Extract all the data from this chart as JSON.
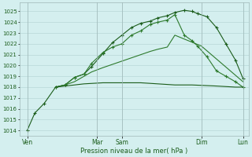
{
  "xlabel": "Pression niveau de la mer( hPa )",
  "background_color": "#d4efef",
  "grid_color": "#b8d8d8",
  "line_color_dark": "#1a5c1a",
  "line_color_med": "#2d7a2d",
  "ylim": [
    1013.5,
    1025.8
  ],
  "yticks": [
    1014,
    1015,
    1016,
    1017,
    1018,
    1019,
    1020,
    1021,
    1022,
    1023,
    1024,
    1025
  ],
  "xlim": [
    -0.1,
    12.0
  ],
  "day_positions": [
    0.3,
    4.0,
    5.3,
    9.5,
    11.7
  ],
  "day_labels": [
    "Ven",
    "Mar",
    "Sam",
    "Dim",
    "Lun"
  ],
  "vline_positions": [
    0.3,
    4.0,
    5.3,
    9.5,
    11.7
  ],
  "series": {
    "line1_x": [
      0.3,
      0.7,
      1.2,
      1.8,
      2.3,
      2.8,
      3.3,
      3.7,
      4.3,
      4.8,
      5.3,
      5.8,
      6.3,
      6.8,
      7.2,
      7.7,
      8.1,
      8.6,
      9.0,
      9.3,
      9.8,
      10.3,
      10.8,
      11.3,
      11.7
    ],
    "line1_y": [
      1014.0,
      1015.6,
      1016.5,
      1018.0,
      1018.2,
      1018.9,
      1019.2,
      1019.9,
      1021.1,
      1022.1,
      1022.8,
      1023.5,
      1023.9,
      1024.1,
      1024.4,
      1024.6,
      1024.9,
      1025.1,
      1025.0,
      1024.8,
      1024.5,
      1023.5,
      1022.0,
      1020.5,
      1018.8
    ],
    "line2_x": [
      1.8,
      2.3,
      2.8,
      3.3,
      3.7,
      4.3,
      4.8,
      5.3,
      5.8,
      6.3,
      6.8,
      7.2,
      7.7,
      8.1,
      8.6,
      9.0,
      9.3,
      9.8,
      10.3,
      10.8,
      11.3,
      11.7
    ],
    "line2_y": [
      1018.0,
      1018.2,
      1018.9,
      1019.2,
      1020.2,
      1021.2,
      1021.7,
      1022.0,
      1022.8,
      1023.2,
      1023.8,
      1024.0,
      1024.2,
      1024.7,
      1022.8,
      1022.3,
      1021.8,
      1020.8,
      1019.5,
      1019.0,
      1018.5,
      1018.0
    ],
    "line3_x": [
      1.8,
      2.3,
      2.8,
      3.3,
      3.7,
      4.3,
      4.8,
      5.3,
      5.8,
      6.3,
      6.8,
      7.2,
      7.7,
      8.1,
      9.5,
      11.7
    ],
    "line3_y": [
      1018.0,
      1018.2,
      1018.5,
      1019.0,
      1019.4,
      1019.8,
      1020.1,
      1020.4,
      1020.7,
      1021.0,
      1021.3,
      1021.5,
      1021.7,
      1022.8,
      1021.8,
      1018.5
    ],
    "line4_x": [
      1.8,
      2.3,
      3.3,
      4.3,
      5.3,
      6.3,
      7.2,
      8.1,
      9.0,
      10.3,
      11.3,
      11.7
    ],
    "line4_y": [
      1018.0,
      1018.1,
      1018.3,
      1018.4,
      1018.4,
      1018.4,
      1018.3,
      1018.2,
      1018.2,
      1018.1,
      1018.0,
      1018.0
    ]
  }
}
